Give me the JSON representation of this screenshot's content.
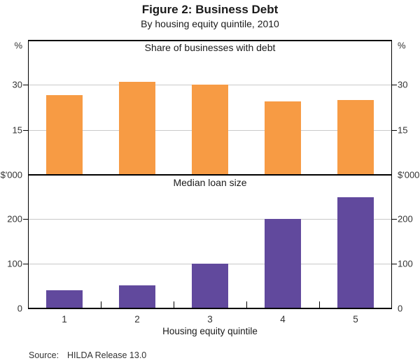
{
  "header": {
    "title": "Figure 2: Business Debt",
    "subtitle": "By housing equity quintile, 2010"
  },
  "chart_data": [
    {
      "type": "bar",
      "panel": "top",
      "title": "Share of businesses with debt",
      "unit": "%",
      "categories": [
        "1",
        "2",
        "3",
        "4",
        "5"
      ],
      "values": [
        26.5,
        31,
        30,
        24.5,
        25
      ],
      "ylim": [
        0,
        45
      ],
      "yticks": [
        15,
        30
      ],
      "show_zero_label": false,
      "bar_color": "#F79B44",
      "xlabel": ""
    },
    {
      "type": "bar",
      "panel": "bottom",
      "title": "Median loan size",
      "unit": "$'000",
      "categories": [
        "1",
        "2",
        "3",
        "4",
        "5"
      ],
      "values": [
        40,
        50,
        100,
        200,
        250
      ],
      "ylim": [
        0,
        300
      ],
      "yticks": [
        100,
        200
      ],
      "show_zero_label": true,
      "bar_color": "#61499D",
      "xlabel": "Housing equity quintile"
    }
  ],
  "footer": {
    "source_label": "Source:",
    "source_text": "HILDA Release 13.0"
  },
  "colors": {
    "grid": "#C9C9C9",
    "axis": "#000000",
    "text": "#333333",
    "orange_bar": "#F79B44",
    "purple_bar": "#61499D"
  }
}
